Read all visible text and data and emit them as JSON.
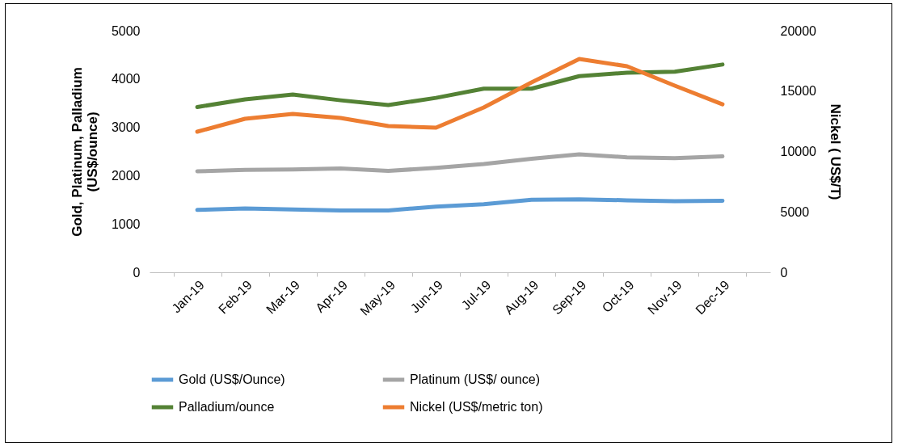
{
  "chart_data": {
    "type": "line",
    "categories": [
      "Jan-19",
      "Feb-19",
      "Mar-19",
      "Apr-19",
      "May-19",
      "Jun-19",
      "Jul-19",
      "Aug-19",
      "Sep-19",
      "Oct-19",
      "Nov-19",
      "Dec-19"
    ],
    "ylabel": "Gold, Platinum, Palladium (US$/ounce)",
    "y2label": "Nickel ( US$/T)",
    "ylim": [
      0,
      5000
    ],
    "yticks": [
      0,
      1000,
      2000,
      3000,
      4000,
      5000
    ],
    "y2lim": [
      0,
      20000
    ],
    "y2ticks": [
      0,
      5000,
      10000,
      15000,
      20000
    ],
    "grid": false,
    "legend": "bottom",
    "line_style": "solid",
    "series": [
      {
        "name": "Gold (US$/Ounce)",
        "color": "#5b9bd5",
        "values": [
          1290,
          1320,
          1300,
          1280,
          1280,
          1360,
          1410,
          1500,
          1510,
          1490,
          1470,
          1480
        ]
      },
      {
        "name": "Platinum (US$/ ounce)",
        "color": "#a5a5a5",
        "values": [
          2090,
          2120,
          2130,
          2150,
          2100,
          2160,
          2240,
          2350,
          2440,
          2380,
          2360,
          2400
        ]
      },
      {
        "name": "Palladium/ounce",
        "color": "#548235",
        "values": [
          3420,
          3580,
          3680,
          3560,
          3460,
          3610,
          3800,
          3800,
          4060,
          4130,
          4150,
          4300
        ]
      },
      {
        "name": "Nickel (US$/metric ton)",
        "color": "#ed7d31",
        "axis": "y2",
        "values": [
          11640,
          12710,
          13110,
          12780,
          12110,
          11970,
          13650,
          15720,
          17660,
          17060,
          15450,
          13910
        ]
      }
    ]
  }
}
